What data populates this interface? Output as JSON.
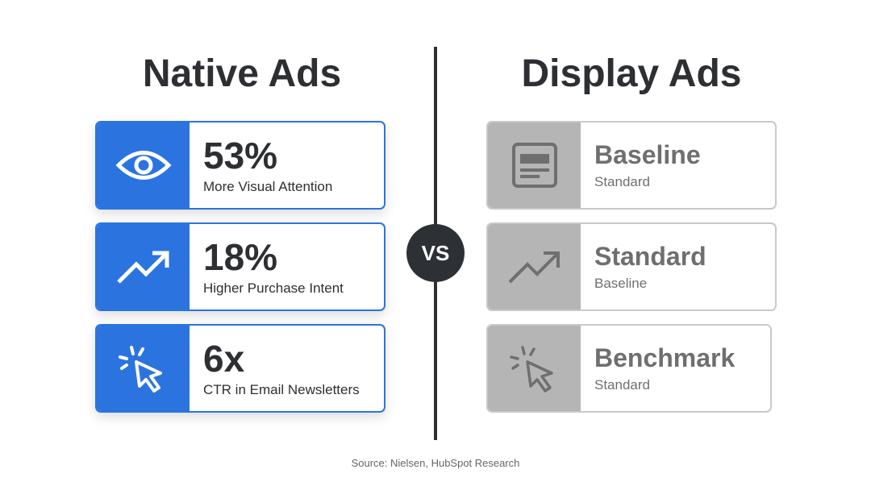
{
  "native": {
    "title": "Native Ads",
    "items": [
      {
        "stat": "53%",
        "label": "More Visual Attention"
      },
      {
        "stat": "18%",
        "label": "Higher Purchase Intent"
      },
      {
        "stat": "6x",
        "label": "CTR in Email Newsletters"
      }
    ]
  },
  "display": {
    "title": "Display Ads",
    "items": [
      {
        "stat": "Baseline",
        "label": "Standard"
      },
      {
        "stat": "Standard",
        "label": "Baseline"
      },
      {
        "stat": "Benchmark",
        "label": "Standard"
      }
    ]
  },
  "vs": "VS",
  "source": "Source: Nielsen, HubSpot Research"
}
